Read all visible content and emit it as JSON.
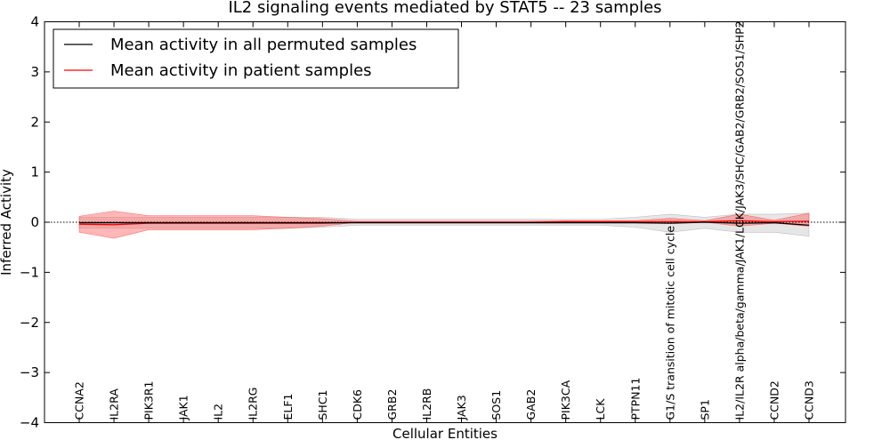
{
  "chart_data": {
    "type": "line",
    "title": "IL2 signaling events mediated by STAT5 -- 23 samples",
    "xlabel": "Cellular Entities",
    "ylabel": "Inferred Activity",
    "ylim": [
      -4,
      4
    ],
    "yticks": [
      -4,
      -3,
      -2,
      -1,
      0,
      1,
      2,
      3,
      4
    ],
    "ytick_labels": [
      "−4",
      "−3",
      "−2",
      "−1",
      "0",
      "1",
      "2",
      "3",
      "4"
    ],
    "legend_position": "top-left",
    "categories": [
      "CCNA2",
      "IL2RA",
      "PIK3R1",
      "JAK1",
      "IL2",
      "IL2RG",
      "ELF1",
      "SHC1",
      "CDK6",
      "GRB2",
      "IL2RB",
      "JAK3",
      "SOS1",
      "GAB2",
      "PIK3CA",
      "LCK",
      "PTPN11",
      "G1/S transition of mitotic cell cycle",
      "SP1",
      "IL2/IL2R alpha/beta/gamma/JAK1/LCK/JAK3/SHC/GAB2/GRB2/SOS1/SHP2",
      "CCND2",
      "CCND3"
    ],
    "series": [
      {
        "name": "Mean activity in all permuted samples",
        "color": "#000000",
        "values": [
          -0.01,
          -0.01,
          -0.01,
          -0.01,
          -0.01,
          -0.01,
          -0.01,
          -0.01,
          -0.01,
          -0.01,
          -0.01,
          -0.01,
          -0.01,
          -0.01,
          -0.01,
          -0.01,
          -0.01,
          -0.02,
          0.0,
          -0.02,
          -0.01,
          -0.06
        ],
        "band_lower": [
          -0.12,
          -0.12,
          -0.12,
          -0.12,
          -0.12,
          -0.12,
          -0.12,
          -0.1,
          -0.06,
          -0.06,
          -0.06,
          -0.06,
          -0.06,
          -0.06,
          -0.06,
          -0.06,
          -0.1,
          -0.2,
          -0.12,
          -0.2,
          -0.2,
          -0.28
        ],
        "band_upper": [
          0.1,
          0.1,
          0.1,
          0.1,
          0.1,
          0.1,
          0.1,
          0.1,
          0.06,
          0.06,
          0.06,
          0.06,
          0.06,
          0.06,
          0.06,
          0.06,
          0.1,
          0.16,
          0.1,
          0.16,
          0.16,
          0.18
        ]
      },
      {
        "name": "Mean activity in patient samples",
        "color": "#ff0000",
        "values": [
          -0.04,
          -0.05,
          -0.02,
          -0.02,
          -0.02,
          -0.02,
          -0.02,
          -0.02,
          0.0,
          0.0,
          0.0,
          0.0,
          0.0,
          0.0,
          0.01,
          0.01,
          0.01,
          0.01,
          0.01,
          0.03,
          0.01,
          0.02
        ],
        "band_lower": [
          -0.2,
          -0.32,
          -0.15,
          -0.15,
          -0.15,
          -0.15,
          -0.12,
          -0.08,
          0.0,
          0.0,
          0.0,
          0.0,
          0.0,
          0.0,
          0.0,
          0.0,
          0.0,
          0.0,
          0.0,
          -0.08,
          -0.02,
          -0.08
        ],
        "band_upper": [
          0.12,
          0.22,
          0.13,
          0.13,
          0.13,
          0.13,
          0.1,
          0.07,
          0.02,
          0.02,
          0.02,
          0.02,
          0.02,
          0.02,
          0.03,
          0.03,
          0.03,
          0.08,
          0.03,
          0.16,
          0.04,
          0.18
        ]
      }
    ]
  }
}
